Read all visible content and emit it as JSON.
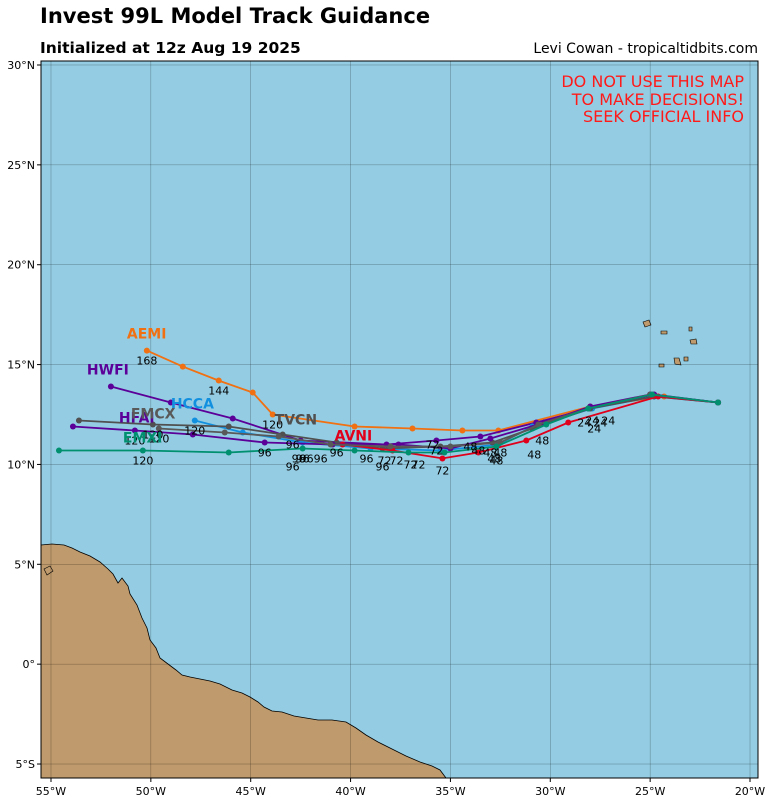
{
  "header": {
    "title": "Invest 99L Model Track Guidance",
    "subtitle": "Initialized at 12z Aug 19 2025",
    "credit": "Levi Cowan - tropicaltidbits.com"
  },
  "warning": [
    "DO NOT USE THIS MAP",
    "TO MAKE DECISIONS!",
    "SEEK OFFICIAL INFO"
  ],
  "colors": {
    "ocean": "#94cde3",
    "land": "#bf9a6c",
    "warning": "#ff1a1a"
  },
  "map": {
    "projection": "plate-carree",
    "lon_range": [
      -55.5,
      -19.6
    ],
    "lat_range": [
      -5.7,
      30.2
    ],
    "lon_ticks": [
      {
        "v": -55,
        "t": "55°W"
      },
      {
        "v": -50,
        "t": "50°W"
      },
      {
        "v": -45,
        "t": "45°W"
      },
      {
        "v": -40,
        "t": "40°W"
      },
      {
        "v": -35,
        "t": "35°W"
      },
      {
        "v": -30,
        "t": "30°W"
      },
      {
        "v": -25,
        "t": "25°W"
      },
      {
        "v": -20,
        "t": "20°W"
      }
    ],
    "lat_ticks": [
      {
        "v": 30,
        "t": "30°N"
      },
      {
        "v": 25,
        "t": "25°N"
      },
      {
        "v": 20,
        "t": "20°N"
      },
      {
        "v": 15,
        "t": "15°N"
      },
      {
        "v": 10,
        "t": "10°N"
      },
      {
        "v": 5,
        "t": "5°N"
      },
      {
        "v": 0,
        "t": "0°"
      },
      {
        "v": -5,
        "t": "5°S"
      }
    ],
    "grid": true
  },
  "models": [
    {
      "name": "AEMI",
      "color": "#f07012",
      "lon": [
        -21.6,
        -24.3,
        -28.0,
        -32.6,
        -34.4,
        -36.9,
        -39.8,
        -43.9,
        -44.9,
        -46.6,
        -48.4,
        -50.2
      ],
      "lat": [
        13.1,
        13.4,
        12.9,
        11.7,
        11.7,
        11.8,
        11.9,
        12.5,
        13.6,
        14.2,
        14.9,
        15.7
      ],
      "hours": [
        {
          "h": "144",
          "lon": -46.6,
          "lat": 14.2
        },
        {
          "h": "168",
          "lon": -50.2,
          "lat": 15.7
        },
        {
          "h": "120",
          "lon": -43.9,
          "lat": 12.5
        }
      ]
    },
    {
      "name": "HWFI",
      "color": "#5b0098",
      "lon": [
        -21.6,
        -24.8,
        -28.0,
        -30.7,
        -33.5,
        -35.7,
        -38.2,
        -42.5,
        -45.9,
        -49.0,
        -52.0
      ],
      "lat": [
        13.1,
        13.5,
        12.8,
        12.1,
        11.4,
        11.2,
        11.0,
        11.2,
        12.3,
        13.1,
        13.9
      ],
      "hours": []
    },
    {
      "name": "HCCA",
      "color": "#1290e0",
      "lon": [
        -21.6,
        -24.8,
        -27.9,
        -30.9,
        -32.6,
        -35.5,
        -39.0,
        -42.4,
        -45.4,
        -47.8
      ],
      "lat": [
        13.1,
        13.4,
        12.8,
        11.9,
        11.0,
        10.7,
        10.8,
        11.1,
        11.6,
        12.2
      ],
      "hours": [
        {
          "h": "120",
          "lon": -47.8,
          "lat": 12.2
        }
      ]
    },
    {
      "name": "TVCN",
      "color": "#505050",
      "lon": [
        -21.6,
        -24.8,
        -28.0,
        -30.9,
        -32.9,
        -35.5,
        -38.4,
        -40.7,
        -43.4,
        -46.1,
        -49.9,
        -53.6
      ],
      "lat": [
        13.1,
        13.4,
        12.8,
        11.8,
        11.1,
        10.9,
        10.8,
        11.1,
        11.5,
        11.9,
        12.0,
        12.2
      ],
      "hours": [
        {
          "h": "120",
          "lon": -49.9,
          "lat": 12.0
        },
        {
          "h": "96",
          "lon": -40.7,
          "lat": 11.1
        }
      ]
    },
    {
      "name": "AVNI",
      "color": "#e0001c",
      "lon": [
        -21.6,
        -24.6,
        -29.1,
        -31.2,
        -33.6,
        -35.4,
        -37.9,
        -40.4
      ],
      "lat": [
        13.1,
        13.4,
        12.1,
        11.2,
        10.6,
        10.3,
        10.7,
        11.0
      ],
      "hours": []
    },
    {
      "name": "HFAI",
      "color": "#5b0098",
      "lon": [
        -21.6,
        -25.0,
        -28.0,
        -30.3,
        -33.0,
        -35.0,
        -37.6,
        -40.9,
        -44.3,
        -47.9,
        -50.8,
        -53.9
      ],
      "lat": [
        13.1,
        13.5,
        12.9,
        12.1,
        11.3,
        10.8,
        11.0,
        11.0,
        11.1,
        11.5,
        11.7,
        11.9
      ],
      "hours": [
        {
          "h": "96",
          "lon": -44.3,
          "lat": 11.1
        },
        {
          "h": "120",
          "lon": -50.8,
          "lat": 11.7
        },
        {
          "h": "72",
          "lon": -35.7,
          "lat": 11.2
        }
      ]
    },
    {
      "name": "FMCX",
      "color": "#595959",
      "lon": [
        -21.6,
        -25.0,
        -28.1,
        -30.6,
        -32.5,
        -35.0,
        -38.0,
        -41.0,
        -43.6,
        -46.3,
        -49.6
      ],
      "lat": [
        13.1,
        13.5,
        12.8,
        12.0,
        11.1,
        10.9,
        10.9,
        11.0,
        11.4,
        11.6,
        11.8
      ],
      "hours": [
        {
          "h": "120",
          "lon": -49.6,
          "lat": 11.8
        }
      ]
    },
    {
      "name": "EMXI",
      "color": "#009070",
      "lon": [
        -21.6,
        -24.9,
        -28.1,
        -30.2,
        -32.7,
        -35.3,
        -37.1,
        -39.8,
        -42.4,
        -46.1,
        -50.4,
        -54.6
      ],
      "lat": [
        13.1,
        13.5,
        12.8,
        12.0,
        10.9,
        10.6,
        10.6,
        10.7,
        10.8,
        10.6,
        10.7,
        10.7
      ],
      "hours": [
        {
          "h": "96",
          "lon": -42.4,
          "lat": 10.8
        },
        {
          "h": "120",
          "lon": -50.4,
          "lat": 10.7
        }
      ]
    }
  ],
  "model_labels": [
    {
      "text": "AEMI",
      "lon": -51.2,
      "lat": 16.3,
      "color": "#f07012"
    },
    {
      "text": "HWFI",
      "lon": -53.2,
      "lat": 14.5,
      "color": "#5b0098"
    },
    {
      "text": "HCCA",
      "lon": -49.0,
      "lat": 12.8,
      "color": "#1290e0"
    },
    {
      "text": "TVCN",
      "lon": -43.8,
      "lat": 12.0,
      "color": "#505050"
    },
    {
      "text": "AVNI",
      "lon": -40.8,
      "lat": 11.2,
      "color": "#e0001c"
    },
    {
      "text": "HFAI",
      "lon": -51.6,
      "lat": 12.1,
      "color": "#5b0098"
    },
    {
      "text": "FMCX",
      "lon": -51.0,
      "lat": 12.3,
      "color": "#595959"
    },
    {
      "text": "EMXI",
      "lon": -51.4,
      "lat": 11.1,
      "color": "#009070"
    }
  ],
  "hour_labels": [
    {
      "h": "24",
      "lon": -28.3,
      "lat": 12.1
    },
    {
      "h": "24",
      "lon": -27.9,
      "lat": 12.2
    },
    {
      "h": "24",
      "lon": -27.5,
      "lat": 12.1
    },
    {
      "h": "24",
      "lon": -27.1,
      "lat": 12.2
    },
    {
      "h": "24",
      "lon": -27.8,
      "lat": 11.8
    },
    {
      "h": "48",
      "lon": -33.6,
      "lat": 10.7
    },
    {
      "h": "48",
      "lon": -33.0,
      "lat": 10.6
    },
    {
      "h": "48",
      "lon": -32.5,
      "lat": 10.6
    },
    {
      "h": "48",
      "lon": -32.8,
      "lat": 10.3
    },
    {
      "h": "48",
      "lon": -32.7,
      "lat": 10.2
    },
    {
      "h": "48",
      "lon": -30.4,
      "lat": 11.2
    },
    {
      "h": "48",
      "lon": -30.8,
      "lat": 10.5
    },
    {
      "h": "48",
      "lon": -34.0,
      "lat": 10.9
    },
    {
      "h": "72",
      "lon": -35.9,
      "lat": 11.0
    },
    {
      "h": "72",
      "lon": -38.3,
      "lat": 10.2
    },
    {
      "h": "72",
      "lon": -37.7,
      "lat": 10.2
    },
    {
      "h": "72",
      "lon": -37.0,
      "lat": 10.0
    },
    {
      "h": "72",
      "lon": -36.6,
      "lat": 10.0
    },
    {
      "h": "72",
      "lon": -35.4,
      "lat": 9.7
    },
    {
      "h": "96",
      "lon": -42.9,
      "lat": 11.0
    },
    {
      "h": "96",
      "lon": -42.6,
      "lat": 10.3
    },
    {
      "h": "96",
      "lon": -42.2,
      "lat": 10.3
    },
    {
      "h": "96",
      "lon": -39.2,
      "lat": 10.3
    },
    {
      "h": "96",
      "lon": -41.5,
      "lat": 10.3
    },
    {
      "h": "96",
      "lon": -38.4,
      "lat": 9.9
    },
    {
      "h": "96",
      "lon": -42.9,
      "lat": 9.9
    }
  ]
}
